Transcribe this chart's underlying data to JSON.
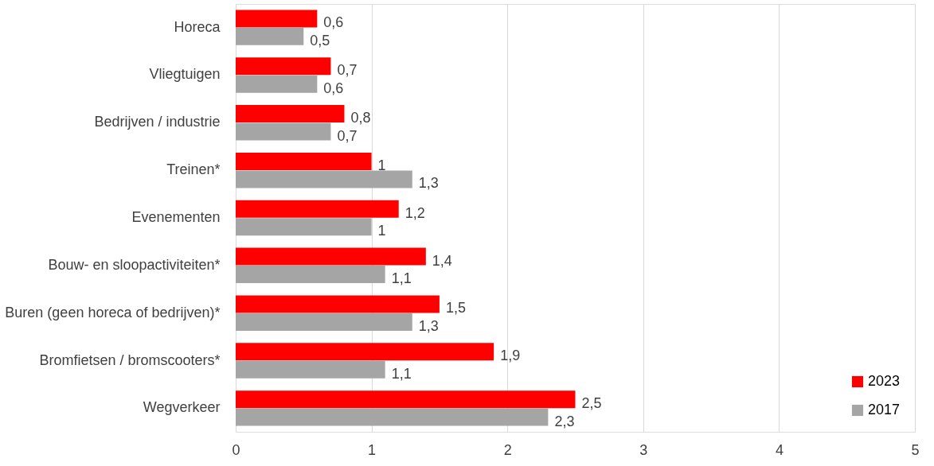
{
  "chart_data": {
    "type": "bar",
    "orientation": "horizontal",
    "categories": [
      "Horeca",
      "Vliegtuigen",
      "Bedrijven / industrie",
      "Treinen*",
      "Evenementen",
      "Bouw- en sloopactiviteiten*",
      "Buren (geen horeca of bedrijven)*",
      "Bromfietsen / bromscooters*",
      "Wegverkeer"
    ],
    "series": [
      {
        "name": "2023",
        "color": "#ff0000",
        "values": [
          0.6,
          0.7,
          0.8,
          1,
          1.2,
          1.4,
          1.5,
          1.9,
          2.5
        ],
        "value_labels": [
          "0,6",
          "0,7",
          "0,8",
          "1",
          "1,2",
          "1,4",
          "1,5",
          "1,9",
          "2,5"
        ]
      },
      {
        "name": "2017",
        "color": "#a5a5a5",
        "values": [
          0.5,
          0.6,
          0.7,
          1.3,
          1,
          1.1,
          1.3,
          1.1,
          2.3
        ],
        "value_labels": [
          "0,5",
          "0,6",
          "0,7",
          "1,3",
          "1",
          "1,1",
          "1,3",
          "1,1",
          "2,3"
        ]
      }
    ],
    "xlim": [
      0,
      5
    ],
    "xticks": [
      0,
      1,
      2,
      3,
      4,
      5
    ],
    "grid": "x",
    "legend": "bottom right"
  }
}
